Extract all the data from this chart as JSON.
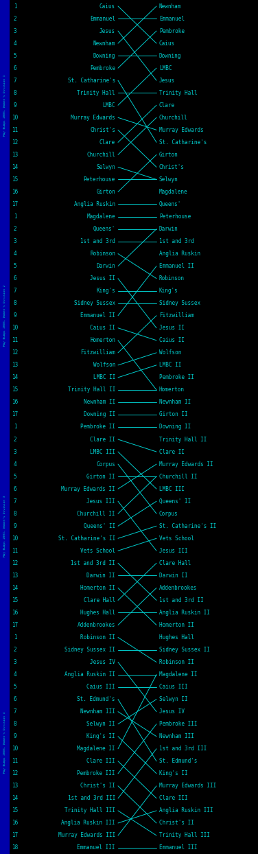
{
  "bg_color": "#000000",
  "line_color": "#00cccc",
  "text_color": "#00cccc",
  "sidebar_color": "#0000aa",
  "divisions": [
    {
      "label": "May Bumps 2003, Women's Division 1",
      "rows": 17,
      "start_names": [
        "Caius",
        "Emmanuel",
        "Jesus",
        "Newnham",
        "Downing",
        "Pembroke",
        "St. Catharine's",
        "Trinity Hall",
        "LMBC",
        "Murray Edwards",
        "Christ's",
        "Clare",
        "Churchill",
        "Selwyn",
        "Peterhouse",
        "Girton",
        "Anglia Ruskin"
      ],
      "end_names": [
        "Newnham",
        "Emmanuel",
        "Pembroke",
        "Caius",
        "Downing",
        "LMBC",
        "Jesus",
        "Trinity Hall",
        "Clare",
        "Churchill",
        "Murray Edwards",
        "St. Catharine's",
        "Girton",
        "Christ's",
        "Selwyn",
        "Magdalene",
        "Queens'"
      ]
    },
    {
      "label": "May Bumps 2003, Women's Division 2",
      "rows": 17,
      "start_names": [
        "Magdalene",
        "Queens'",
        "1st and 3rd",
        "Robinson",
        "Darwin",
        "Jesus II",
        "King's",
        "Sidney Sussex",
        "Emmanuel II",
        "Caius II",
        "Homerton",
        "Fitzwilliam",
        "Wolfson",
        "LMBC II",
        "Trinity Hall II",
        "Newnham II",
        "Downing II"
      ],
      "end_names": [
        "Peterhouse",
        "Darwin",
        "1st and 3rd",
        "Anglia Ruskin",
        "Emmanuel II",
        "Robinson",
        "King's",
        "Sidney Sussex",
        "Fitzwilliam",
        "Jesus II",
        "Caius II",
        "Wolfson",
        "LMBC II",
        "Pembroke II",
        "Homerton",
        "Newnham II",
        "Girton II"
      ]
    },
    {
      "label": "May Bumps 2003, Women's Division 3",
      "rows": 17,
      "start_names": [
        "Pembroke II",
        "Clare II",
        "LMBC III",
        "Corpus",
        "Girton II",
        "Murray Edwards II",
        "Jesus III",
        "Churchill II",
        "Queens' II",
        "St. Catharine's II",
        "Vets School",
        "1st and 3rd II",
        "Darwin II",
        "Homerton II",
        "Clare Hall",
        "Hughes Hall",
        "Addenbrookes"
      ],
      "end_names": [
        "Downing II",
        "Trinity Hall II",
        "Clare II",
        "Murray Edwards II",
        "Churchill II",
        "LMBC III",
        "Queens' II",
        "Corpus",
        "St. Catharine's II",
        "Vets School",
        "Jesus III",
        "Clare Hall",
        "Darwin II",
        "Addenbrookes",
        "1st and 3rd II",
        "Anglia Ruskin II",
        "Homerton II"
      ]
    },
    {
      "label": "May Bumps 2003, Women's Division 4",
      "rows": 18,
      "start_names": [
        "Robinson II",
        "Sidney Sussex II",
        "Jesus IV",
        "Anglia Ruskin II",
        "Caius III",
        "St. Edmund's",
        "Newnham III",
        "Selwyn II",
        "King's II",
        "Magdalene II",
        "Clare III",
        "Pembroke III",
        "Christ's II",
        "1st and 3rd III",
        "Trinity Hall III",
        "Anglia Ruskin III",
        "Murray Edwards III",
        "Emmanuel III"
      ],
      "end_names": [
        "Hughes Hall",
        "Sidney Sussex II",
        "Robinson II",
        "Magdalene II",
        "Caius III",
        "Selwyn II",
        "Jesus IV",
        "Pembroke III",
        "Newnham III",
        "1st and 3rd III",
        "St. Edmund's",
        "King's II",
        "Murray Edwards III",
        "Clare III",
        "Anglia Ruskin III",
        "Christ's II",
        "Trinity Hall III",
        "Emmanuel III"
      ]
    }
  ]
}
